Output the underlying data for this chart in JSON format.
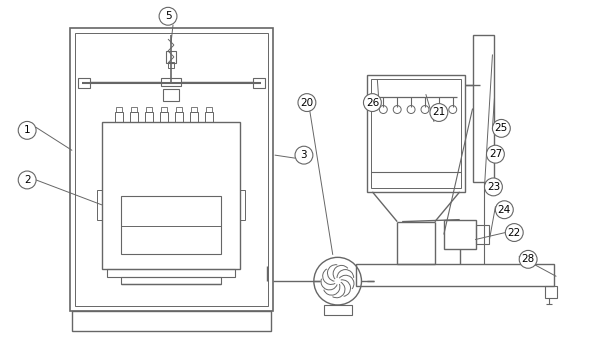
{
  "bg_color": "#ffffff",
  "line_color": "#666666",
  "lw": 1.0,
  "figsize": [
    5.93,
    3.5
  ],
  "dpi": 100
}
